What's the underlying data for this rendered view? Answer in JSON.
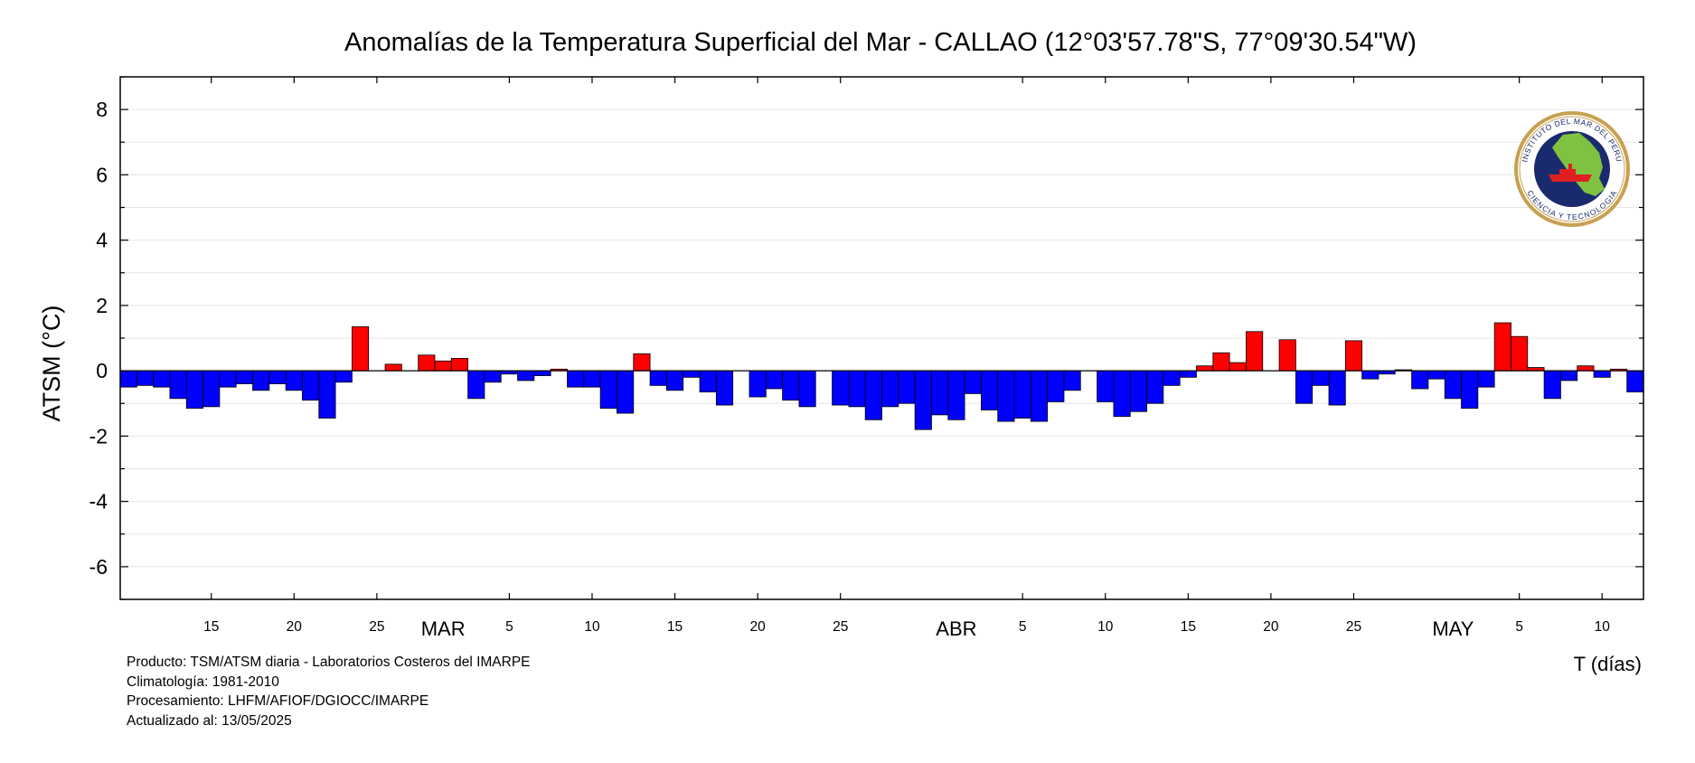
{
  "chart_data": {
    "type": "bar",
    "title": "Anomalías de la Temperatura Superficial del Mar - CALLAO (12°03'57.78\"S, 77°09'30.54\"W)",
    "ylabel": "ATSM (°C)",
    "xlabel": "T (días)",
    "ylim": [
      -7,
      9
    ],
    "y_ticks": [
      8,
      6,
      4,
      2,
      0,
      -2,
      -4,
      -6
    ],
    "grid": true,
    "start_date": "2025-02-10",
    "x_tick_labels": [
      {
        "date": "2025-02-15",
        "label": "15"
      },
      {
        "date": "2025-02-20",
        "label": "20"
      },
      {
        "date": "2025-02-25",
        "label": "25"
      },
      {
        "date": "2025-03-05",
        "label": "5"
      },
      {
        "date": "2025-03-10",
        "label": "10"
      },
      {
        "date": "2025-03-15",
        "label": "15"
      },
      {
        "date": "2025-03-20",
        "label": "20"
      },
      {
        "date": "2025-03-25",
        "label": "25"
      },
      {
        "date": "2025-04-05",
        "label": "5"
      },
      {
        "date": "2025-04-10",
        "label": "10"
      },
      {
        "date": "2025-04-15",
        "label": "15"
      },
      {
        "date": "2025-04-20",
        "label": "20"
      },
      {
        "date": "2025-04-25",
        "label": "25"
      },
      {
        "date": "2025-05-05",
        "label": "5"
      },
      {
        "date": "2025-05-10",
        "label": "10"
      }
    ],
    "month_labels": [
      {
        "date": "2025-03-01",
        "label": "MAR"
      },
      {
        "date": "2025-04-01",
        "label": "ABR"
      },
      {
        "date": "2025-05-01",
        "label": "MAY"
      }
    ],
    "positive_color": "#ff0000",
    "negative_color": "#0000ff",
    "values": [
      -0.5,
      -0.45,
      -0.5,
      -0.85,
      -1.15,
      -1.1,
      -0.5,
      -0.4,
      -0.6,
      -0.4,
      -0.6,
      -0.9,
      -1.45,
      -0.35,
      1.35,
      null,
      0.2,
      null,
      0.48,
      0.3,
      0.38,
      -0.85,
      -0.35,
      -0.1,
      -0.3,
      -0.15,
      0.05,
      -0.5,
      -0.5,
      -1.15,
      -1.3,
      0.52,
      -0.45,
      -0.6,
      -0.2,
      -0.65,
      -1.05,
      null,
      -0.8,
      -0.55,
      -0.9,
      -1.1,
      null,
      -1.05,
      -1.1,
      -1.5,
      -1.1,
      -1.0,
      -1.8,
      -1.35,
      -1.5,
      -0.7,
      -1.2,
      -1.55,
      -1.45,
      -1.55,
      -0.95,
      -0.6,
      null,
      -0.95,
      -1.4,
      -1.25,
      -1.0,
      -0.45,
      -0.2,
      0.15,
      0.55,
      0.25,
      1.2,
      null,
      0.95,
      -1.0,
      -0.45,
      -1.05,
      0.92,
      -0.25,
      -0.1,
      0.03,
      -0.55,
      -0.25,
      -0.85,
      -1.15,
      -0.5,
      1.47,
      1.05,
      0.1,
      -0.85,
      -0.3,
      0.15,
      -0.2,
      0.05,
      -0.65
    ]
  },
  "footer": {
    "producto": "Producto: TSM/ATSM diaria - Laboratorios Costeros del IMARPE",
    "climatologia": "Climatología: 1981-2010",
    "procesamiento": "Procesamiento: LHFM/AFIOF/DGIOCC/IMARPE",
    "actualizado": "Actualizado al: 13/05/2025"
  },
  "logo": {
    "text_top": "INSTITUTO DEL MAR DEL PERU",
    "text_bottom": "CIENCIA Y TECNOLOGIA",
    "ring_color": "#c8a050",
    "inner_color": "#1a2a6e",
    "land_color": "#7fc241"
  }
}
